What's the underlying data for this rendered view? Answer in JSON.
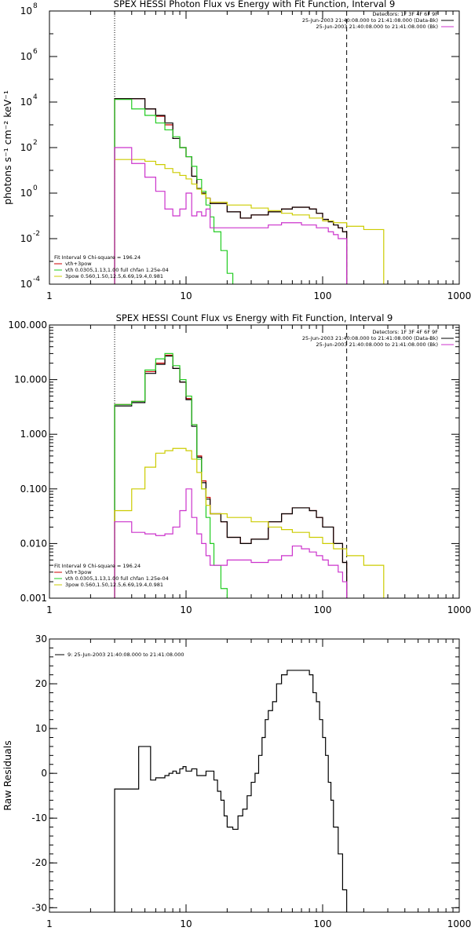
{
  "chart_data": [
    {
      "type": "line",
      "title": "SPEX HESSI Photon Flux vs Energy with Fit Function, Interval 9",
      "xlabel": "",
      "ylabel": "photons s⁻¹ cm⁻² keV⁻¹",
      "xscale": "log",
      "yscale": "log",
      "xlim": [
        1,
        1000
      ],
      "ylim": [
        0.0001,
        100000000
      ],
      "x_ticks": [
        1,
        10,
        100,
        1000
      ],
      "x_tick_labels": [
        "1",
        "10",
        "100",
        "1000"
      ],
      "y_ticks": [
        0.0001,
        0.01,
        1,
        100,
        10000,
        1000000,
        100000000
      ],
      "y_tick_labels": [
        [
          "10",
          "-4"
        ],
        [
          "10",
          "-2"
        ],
        [
          "10",
          "0"
        ],
        [
          "10",
          "2"
        ],
        [
          "10",
          "4"
        ],
        [
          "10",
          "6"
        ],
        [
          "10",
          "8"
        ]
      ],
      "grid": false,
      "legend_top": {
        "placement": "top-right",
        "header": "Detectors: 1F 3F 4F 6F 9F",
        "entries": [
          {
            "text": "25-Jun-2003 21:40:08.000 to 21:41:08.000 (Data-Bk)",
            "color": "#000000"
          },
          {
            "text": "25-Jun-2003 21:40:08.000 to 21:41:08.000 (Bk)",
            "color": "#cc33cc"
          }
        ]
      },
      "legend_bottom": {
        "placement": "bottom-left",
        "header": "Fit Interval  9    Chi-square = 196.24",
        "entries": [
          {
            "text": "vth+3pow",
            "color": "#cc0000"
          },
          {
            "text": "vth 0.0305,1.13,1.00  full chfan 1.25e-04",
            "color": "#22cc22"
          },
          {
            "text": "3pow 0.560,1.50,12.5,6.69,19.4,0.981",
            "color": "#cccc00"
          }
        ]
      },
      "vlines": [
        {
          "x": 3,
          "style": "dotted",
          "color": "#000000"
        },
        {
          "x": 150,
          "style": "dashed",
          "color": "#000000"
        }
      ],
      "series": [
        {
          "name": "",
          "color": "#cc0000",
          "x": [
            3,
            4,
            5,
            6,
            7,
            8,
            9,
            10,
            11,
            12,
            13,
            14,
            15,
            20,
            25,
            30,
            40,
            50,
            60,
            70,
            80,
            90,
            100,
            110,
            120,
            130,
            140,
            150
          ],
          "y": [
            14000,
            14000,
            5000,
            2400,
            1000,
            250,
            100,
            40,
            5.5,
            1.6,
            1.0,
            0.6,
            0.35,
            0.15,
            0.08,
            0.11,
            0.15,
            0.2,
            0.24,
            0.24,
            0.2,
            0.13,
            0.07,
            0.055,
            0.04,
            0.03,
            0.02,
            0.02
          ]
        },
        {
          "name": "",
          "color": "#000000",
          "x": [
            3,
            4,
            5,
            6,
            7,
            8,
            9,
            10,
            11,
            12,
            13,
            14,
            15,
            20,
            25,
            30,
            40,
            50,
            60,
            70,
            80,
            90,
            100,
            110,
            120,
            130,
            140,
            150
          ],
          "y": [
            14000,
            14000,
            5000,
            2600,
            1200,
            250,
            100,
            40,
            5.5,
            1.6,
            1.0,
            0.6,
            0.35,
            0.15,
            0.08,
            0.11,
            0.15,
            0.2,
            0.24,
            0.24,
            0.2,
            0.13,
            0.07,
            0.055,
            0.04,
            0.03,
            0.02,
            0.02
          ]
        },
        {
          "name": "",
          "color": "#22cc22",
          "x": [
            3,
            4,
            5,
            6,
            7,
            8,
            9,
            10,
            11,
            12,
            13,
            14,
            15,
            16,
            18,
            20,
            22
          ],
          "y": [
            13000,
            5000,
            2600,
            1200,
            600,
            300,
            100,
            40,
            15,
            4,
            1.2,
            0.3,
            0.09,
            0.02,
            0.003,
            0.0003,
            0.0001
          ]
        },
        {
          "name": "",
          "color": "#cccc00",
          "x": [
            3,
            4,
            5,
            6,
            7,
            8,
            9,
            10,
            11,
            12,
            13,
            14,
            15,
            20,
            30,
            40,
            50,
            60,
            80,
            100,
            120,
            150,
            200,
            280
          ],
          "y": [
            30,
            30,
            25,
            18,
            12,
            8,
            6,
            4.2,
            2.5,
            1.5,
            0.9,
            0.6,
            0.4,
            0.3,
            0.22,
            0.17,
            0.13,
            0.11,
            0.08,
            0.06,
            0.05,
            0.035,
            0.025,
            0.015
          ]
        },
        {
          "name": "",
          "color": "#cc33cc",
          "x": [
            3,
            4,
            5,
            6,
            7,
            8,
            9,
            10,
            11,
            12,
            13,
            14,
            15,
            20,
            30,
            40,
            50,
            60,
            70,
            80,
            90,
            100,
            110,
            120,
            130,
            140,
            150
          ],
          "y": [
            100,
            20,
            5,
            1.2,
            0.2,
            0.1,
            0.2,
            1,
            0.1,
            0.15,
            0.1,
            0.2,
            0.03,
            0.03,
            0.03,
            0.04,
            0.05,
            0.05,
            0.04,
            0.04,
            0.03,
            0.03,
            0.02,
            0.015,
            0.01,
            0.01,
            0.01
          ]
        }
      ]
    },
    {
      "type": "line",
      "title": "SPEX HESSI Count Flux vs Energy with Fit Function, Interval 9",
      "xlabel": "",
      "ylabel": "",
      "xscale": "log",
      "yscale": "log",
      "xlim": [
        1,
        1000
      ],
      "ylim": [
        0.001,
        100
      ],
      "x_ticks": [
        1,
        10,
        100,
        1000
      ],
      "x_tick_labels": [
        "1",
        "10",
        "100",
        "1000"
      ],
      "y_ticks": [
        0.001,
        0.01,
        0.1,
        1,
        10,
        100
      ],
      "y_tick_labels": [
        "0.001",
        "0.010",
        "0.100",
        "1.000",
        "10.000",
        "100.000"
      ],
      "grid": false,
      "legend_top": {
        "placement": "top-right",
        "header": "Detectors: 1F 3F 4F 6F 9F",
        "entries": [
          {
            "text": "25-Jun-2003 21:40:08.000 to 21:41:08.000 (Data-Bk)",
            "color": "#000000"
          },
          {
            "text": "25-Jun-2003 21:40:08.000 to 21:41:08.000 (Bk)",
            "color": "#cc33cc"
          }
        ]
      },
      "legend_bottom": {
        "placement": "bottom-left",
        "header": "Fit Interval  9    Chi-square = 196.24",
        "entries": [
          {
            "text": "vth+3pow",
            "color": "#cc0000"
          },
          {
            "text": "vth 0.0305,1.13,1.00  full chfan 1.25e-04",
            "color": "#22cc22"
          },
          {
            "text": "3pow 0.560,1.50,12.5,6.69,19.4,0.981",
            "color": "#cccc00"
          }
        ]
      },
      "vlines": [
        {
          "x": 3,
          "style": "dotted",
          "color": "#000000"
        },
        {
          "x": 150,
          "style": "dashed",
          "color": "#000000"
        }
      ],
      "series": [
        {
          "name": "",
          "color": "#cc0000",
          "x": [
            3,
            4,
            5,
            6,
            7,
            8,
            9,
            10,
            11,
            12,
            13,
            14,
            15,
            18,
            20,
            25,
            30,
            40,
            50,
            60,
            70,
            80,
            90,
            100,
            120,
            140,
            150
          ],
          "y": [
            3.5,
            4.0,
            14,
            20,
            28,
            16,
            9,
            4.5,
            1.5,
            0.4,
            0.14,
            0.07,
            0.035,
            0.025,
            0.013,
            0.01,
            0.012,
            0.025,
            0.035,
            0.045,
            0.045,
            0.04,
            0.03,
            0.02,
            0.01,
            0.0045,
            0.002
          ]
        },
        {
          "name": "",
          "color": "#000000",
          "x": [
            3,
            4,
            5,
            6,
            7,
            8,
            9,
            10,
            11,
            12,
            13,
            14,
            15,
            18,
            20,
            25,
            30,
            40,
            50,
            60,
            70,
            80,
            90,
            100,
            120,
            140,
            150
          ],
          "y": [
            3.3,
            3.8,
            13,
            19,
            27,
            16,
            9,
            4.3,
            1.4,
            0.38,
            0.13,
            0.065,
            0.035,
            0.025,
            0.013,
            0.01,
            0.012,
            0.025,
            0.035,
            0.045,
            0.045,
            0.04,
            0.03,
            0.02,
            0.01,
            0.0045,
            0.002
          ]
        },
        {
          "name": "",
          "color": "#22cc22",
          "x": [
            3,
            4,
            5,
            6,
            7,
            8,
            9,
            10,
            11,
            12,
            13,
            14,
            15,
            16,
            18,
            20
          ],
          "y": [
            3.5,
            4,
            15,
            24,
            30,
            18,
            10,
            5,
            1.5,
            0.35,
            0.1,
            0.03,
            0.01,
            0.004,
            0.0015,
            0.001
          ]
        },
        {
          "name": "",
          "color": "#cccc00",
          "x": [
            3,
            4,
            5,
            6,
            7,
            8,
            9,
            10,
            11,
            12,
            13,
            14,
            15,
            20,
            30,
            40,
            50,
            60,
            80,
            100,
            120,
            150,
            200,
            280
          ],
          "y": [
            0.04,
            0.1,
            0.25,
            0.45,
            0.5,
            0.55,
            0.55,
            0.5,
            0.35,
            0.2,
            0.1,
            0.05,
            0.035,
            0.03,
            0.025,
            0.02,
            0.018,
            0.016,
            0.013,
            0.01,
            0.008,
            0.006,
            0.004,
            0.002
          ]
        },
        {
          "name": "",
          "color": "#cc33cc",
          "x": [
            3,
            4,
            5,
            6,
            7,
            8,
            9,
            10,
            11,
            12,
            13,
            14,
            15,
            20,
            30,
            40,
            50,
            60,
            70,
            80,
            90,
            100,
            110,
            120,
            130,
            140,
            150
          ],
          "y": [
            0.025,
            0.016,
            0.015,
            0.014,
            0.015,
            0.02,
            0.04,
            0.1,
            0.03,
            0.015,
            0.01,
            0.006,
            0.004,
            0.005,
            0.0045,
            0.005,
            0.006,
            0.009,
            0.008,
            0.007,
            0.006,
            0.005,
            0.004,
            0.004,
            0.003,
            0.002,
            0.002
          ]
        }
      ]
    },
    {
      "type": "line",
      "title": "",
      "xlabel": "",
      "ylabel": "Raw Residuals",
      "xscale": "log",
      "yscale": "linear",
      "xlim": [
        1,
        1000
      ],
      "ylim": [
        -31,
        30
      ],
      "x_ticks": [
        1,
        10,
        100,
        1000
      ],
      "x_tick_labels": [
        "1",
        "10",
        "100",
        "1000"
      ],
      "y_ticks": [
        -30,
        -20,
        -10,
        0,
        10,
        20,
        30
      ],
      "y_tick_labels": [
        "-30",
        "-20",
        "-10",
        "0",
        "10",
        "20",
        "30"
      ],
      "grid": false,
      "legend_top": {
        "placement": "top-left",
        "header": "",
        "entries": [
          {
            "text": "9: 25-Jun-2003 21:40:08.000 to 21:41:08.000",
            "color": "#000000"
          }
        ]
      },
      "series": [
        {
          "name": "",
          "color": "#000000",
          "x": [
            3,
            4,
            4.5,
            5,
            5.5,
            6,
            6.5,
            7,
            7.5,
            8,
            8.5,
            9,
            9.5,
            10,
            11,
            12,
            13,
            14,
            15,
            16,
            17,
            18,
            19,
            20,
            22,
            24,
            26,
            28,
            30,
            32,
            34,
            36,
            38,
            40,
            43,
            46,
            50,
            55,
            60,
            65,
            70,
            75,
            80,
            85,
            90,
            95,
            100,
            105,
            110,
            115,
            120,
            130,
            140,
            150
          ],
          "y": [
            -3.5,
            -3.5,
            6,
            6,
            -1.5,
            -1,
            -1,
            -0.5,
            0,
            0.5,
            0,
            1,
            1.5,
            0.5,
            1,
            -0.5,
            -0.5,
            0.5,
            0.5,
            -1.5,
            -4,
            -6,
            -9.5,
            -12,
            -12.5,
            -9.5,
            -8,
            -5,
            -2,
            0,
            4,
            8,
            12,
            14,
            16,
            20,
            22,
            23,
            23,
            23,
            23,
            23,
            22,
            18,
            16,
            12,
            8,
            4,
            -2,
            -6,
            -12,
            -18,
            -26,
            -30
          ]
        }
      ]
    }
  ]
}
